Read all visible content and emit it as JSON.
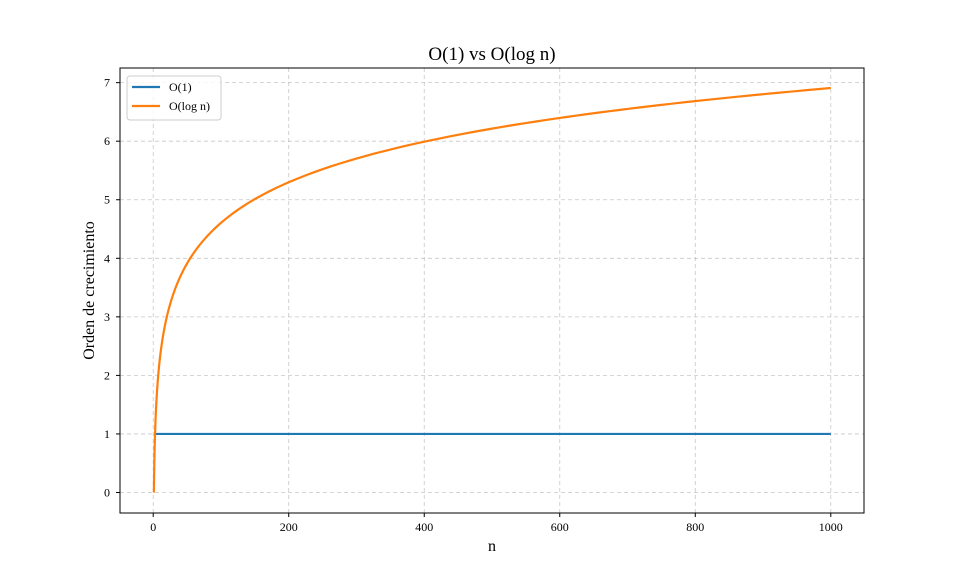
{
  "chart_data": {
    "type": "line",
    "title": "O(1) vs O(log n)",
    "xlabel": "n",
    "ylabel": "Orden de crecimiento",
    "xlim": [
      -49,
      1049
    ],
    "ylim": [
      -0.35,
      7.25
    ],
    "x_ticks": [
      0,
      200,
      400,
      600,
      800,
      1000
    ],
    "y_ticks": [
      0,
      1,
      2,
      3,
      4,
      5,
      6,
      7
    ],
    "grid": true,
    "legend_position": "top-left",
    "series": [
      {
        "name": "O(1)",
        "color": "#1f77b4",
        "x": [
          1,
          1000
        ],
        "y": [
          1,
          1
        ]
      },
      {
        "name": "O(log n)",
        "color": "#ff7f0e",
        "x": [
          1,
          1.5,
          2,
          3,
          4,
          5,
          7,
          10,
          15,
          20,
          30,
          40,
          50,
          70,
          100,
          150,
          200,
          300,
          400,
          500,
          600,
          700,
          800,
          900,
          1000
        ],
        "y": [
          0,
          0.405,
          0.693,
          1.099,
          1.386,
          1.609,
          1.946,
          2.303,
          2.708,
          2.996,
          3.401,
          3.689,
          3.912,
          4.248,
          4.605,
          5.011,
          5.298,
          5.704,
          5.991,
          6.215,
          6.397,
          6.551,
          6.685,
          6.802,
          6.908
        ]
      }
    ]
  }
}
